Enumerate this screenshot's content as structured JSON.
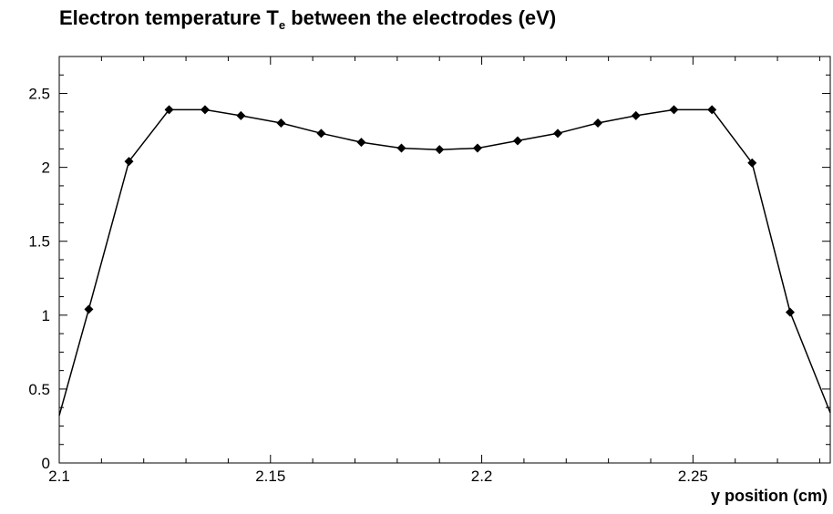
{
  "chart_data": {
    "type": "line",
    "title": {
      "prefix": "Electron temperature T",
      "subscript": "e",
      "suffix": " between the electrodes (eV)"
    },
    "xlabel": "y position (cm)",
    "ylabel": "",
    "xlim": [
      2.1,
      2.2825
    ],
    "ylim": [
      0,
      2.75
    ],
    "xticks": [
      {
        "value": 2.1,
        "label": "2.1"
      },
      {
        "value": 2.15,
        "label": "2.15"
      },
      {
        "value": 2.2,
        "label": "2.2"
      },
      {
        "value": 2.25,
        "label": "2.25"
      }
    ],
    "yticks": [
      {
        "value": 0,
        "label": "0"
      },
      {
        "value": 0.5,
        "label": "0.5"
      },
      {
        "value": 1,
        "label": "1"
      },
      {
        "value": 1.5,
        "label": "1.5"
      },
      {
        "value": 2,
        "label": "2"
      },
      {
        "value": 2.5,
        "label": "2.5"
      }
    ],
    "grid": false,
    "marker": "diamond",
    "line_color": "#000000",
    "series": [
      {
        "x": [
          2.1,
          2.107,
          2.1165,
          2.126,
          2.1345,
          2.143,
          2.1525,
          2.162,
          2.1715,
          2.181,
          2.19,
          2.199,
          2.2085,
          2.218,
          2.2275,
          2.2365,
          2.2455,
          2.2545,
          2.264,
          2.273,
          2.2825
        ],
        "y": [
          0.32,
          1.04,
          2.04,
          2.39,
          2.39,
          2.35,
          2.3,
          2.23,
          2.17,
          2.13,
          2.12,
          2.13,
          2.18,
          2.23,
          2.3,
          2.35,
          2.39,
          2.39,
          2.03,
          1.02,
          0.34
        ]
      }
    ]
  }
}
